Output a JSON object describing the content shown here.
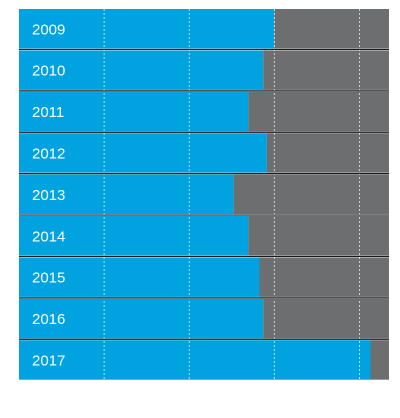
{
  "chart_data": {
    "type": "bar",
    "orientation": "horizontal",
    "stacked": true,
    "categories": [
      "2009",
      "2010",
      "2011",
      "2012",
      "2013",
      "2014",
      "2015",
      "2016",
      "2017"
    ],
    "series": [
      {
        "values": [
          69,
          66,
          62,
          67,
          58,
          62,
          65,
          66,
          95
        ]
      },
      {
        "values": [
          31,
          34,
          38,
          33,
          42,
          38,
          35,
          34,
          5
        ]
      }
    ],
    "xlim": [
      0,
      100
    ],
    "grid": true,
    "colors": {
      "blue": "#00a3e0",
      "gray": "#6d6e70",
      "grid": "#ffffff"
    }
  }
}
